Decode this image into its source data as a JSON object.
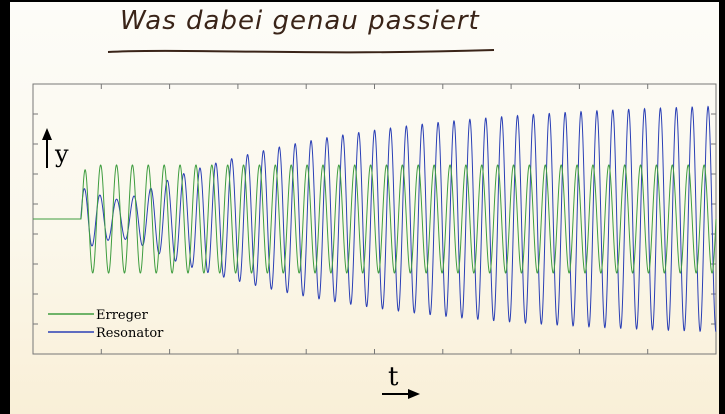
{
  "slide": {
    "title": "Was dabei genau passiert"
  },
  "chart_data": {
    "type": "line",
    "title": "",
    "ylabel": "y",
    "xlabel": "t",
    "grid": false,
    "legend_position": "bottom-left",
    "series": [
      {
        "name": "Erreger",
        "color": "#3f9d3f",
        "description_values": {
          "start_t": 0.07,
          "amplitude": 1.0,
          "cycles": 40
        }
      },
      {
        "name": "Resonator",
        "color": "#2a3fb5",
        "description_values": {
          "start_t": 0.07,
          "final_amplitude": 2.2,
          "cycles": 40
        }
      }
    ],
    "ylim": [
      -2.5,
      2.5
    ],
    "xlim": [
      0,
      1
    ]
  }
}
